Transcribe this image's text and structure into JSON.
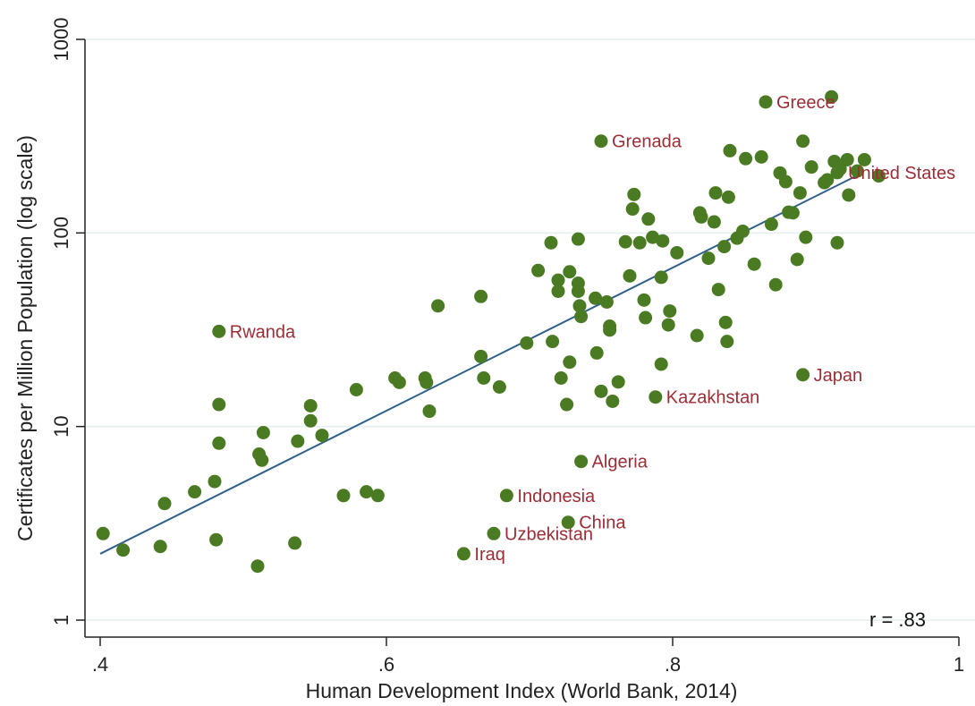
{
  "chart_data": {
    "type": "scatter",
    "title": "",
    "xlabel": "Human Development Index (World Bank, 2014)",
    "ylabel": "Certificates per Million Population (log scale)",
    "xlim": [
      0.4,
      1.0
    ],
    "ylim": [
      1,
      1000
    ],
    "yscale": "log",
    "grid": true,
    "x_ticks": [
      0.4,
      0.6,
      0.8,
      1.0
    ],
    "x_tick_labels": [
      ".4",
      ".6",
      ".8",
      "1"
    ],
    "y_ticks": [
      1,
      10,
      100,
      1000
    ],
    "y_tick_labels": [
      "1",
      "10",
      "100",
      "1000"
    ],
    "annotation": "r = .83",
    "fit_line": {
      "x": [
        0.4,
        0.93
      ],
      "y": [
        2.2,
        200
      ]
    },
    "colors": {
      "points": "#4a7a22",
      "point_labels": "#9b2d35",
      "fit_line": "#2f5f8a",
      "grid": "#e3eeee"
    },
    "labeled_points": [
      {
        "label": "Greece",
        "x": 0.865,
        "y": 475
      },
      {
        "label": "Grenada",
        "x": 0.75,
        "y": 298
      },
      {
        "label": "United States",
        "x": 0.915,
        "y": 205
      },
      {
        "label": "Rwanda",
        "x": 0.483,
        "y": 31
      },
      {
        "label": "Japan",
        "x": 0.891,
        "y": 18.5
      },
      {
        "label": "Kazakhstan",
        "x": 0.788,
        "y": 14.2
      },
      {
        "label": "Algeria",
        "x": 0.736,
        "y": 6.6
      },
      {
        "label": "Indonesia",
        "x": 0.684,
        "y": 4.4
      },
      {
        "label": "China",
        "x": 0.727,
        "y": 3.2
      },
      {
        "label": "Uzbekistan",
        "x": 0.675,
        "y": 2.8
      },
      {
        "label": "Iraq",
        "x": 0.654,
        "y": 2.2
      }
    ],
    "points": [
      {
        "x": 0.402,
        "y": 2.8
      },
      {
        "x": 0.416,
        "y": 2.3
      },
      {
        "x": 0.442,
        "y": 2.4
      },
      {
        "x": 0.445,
        "y": 4.0
      },
      {
        "x": 0.466,
        "y": 4.6
      },
      {
        "x": 0.48,
        "y": 5.2
      },
      {
        "x": 0.481,
        "y": 2.6
      },
      {
        "x": 0.483,
        "y": 8.2
      },
      {
        "x": 0.483,
        "y": 13.0
      },
      {
        "x": 0.51,
        "y": 1.9
      },
      {
        "x": 0.511,
        "y": 7.2
      },
      {
        "x": 0.513,
        "y": 6.7
      },
      {
        "x": 0.514,
        "y": 9.3
      },
      {
        "x": 0.536,
        "y": 2.5
      },
      {
        "x": 0.538,
        "y": 8.4
      },
      {
        "x": 0.547,
        "y": 10.7
      },
      {
        "x": 0.547,
        "y": 12.8
      },
      {
        "x": 0.555,
        "y": 9.0
      },
      {
        "x": 0.57,
        "y": 4.4
      },
      {
        "x": 0.579,
        "y": 15.5
      },
      {
        "x": 0.586,
        "y": 4.6
      },
      {
        "x": 0.594,
        "y": 4.4
      },
      {
        "x": 0.606,
        "y": 17.8
      },
      {
        "x": 0.609,
        "y": 16.9
      },
      {
        "x": 0.627,
        "y": 17.8
      },
      {
        "x": 0.628,
        "y": 16.9
      },
      {
        "x": 0.63,
        "y": 12.0
      },
      {
        "x": 0.636,
        "y": 42.0
      },
      {
        "x": 0.666,
        "y": 47.0
      },
      {
        "x": 0.666,
        "y": 23.0
      },
      {
        "x": 0.668,
        "y": 17.8
      },
      {
        "x": 0.679,
        "y": 16.0
      },
      {
        "x": 0.698,
        "y": 27.0
      },
      {
        "x": 0.706,
        "y": 64.0
      },
      {
        "x": 0.715,
        "y": 89.0
      },
      {
        "x": 0.716,
        "y": 27.5
      },
      {
        "x": 0.72,
        "y": 57.0
      },
      {
        "x": 0.72,
        "y": 50.0
      },
      {
        "x": 0.722,
        "y": 17.8
      },
      {
        "x": 0.726,
        "y": 13.0
      },
      {
        "x": 0.728,
        "y": 21.5
      },
      {
        "x": 0.728,
        "y": 63.0
      },
      {
        "x": 0.734,
        "y": 93.0
      },
      {
        "x": 0.734,
        "y": 55.0
      },
      {
        "x": 0.734,
        "y": 50.0
      },
      {
        "x": 0.735,
        "y": 42.0
      },
      {
        "x": 0.736,
        "y": 37.0
      },
      {
        "x": 0.746,
        "y": 46.0
      },
      {
        "x": 0.747,
        "y": 24.0
      },
      {
        "x": 0.75,
        "y": 15.2
      },
      {
        "x": 0.754,
        "y": 44.0
      },
      {
        "x": 0.756,
        "y": 33.0
      },
      {
        "x": 0.756,
        "y": 31.5
      },
      {
        "x": 0.758,
        "y": 13.5
      },
      {
        "x": 0.762,
        "y": 17.0
      },
      {
        "x": 0.767,
        "y": 90.0
      },
      {
        "x": 0.77,
        "y": 60.0
      },
      {
        "x": 0.772,
        "y": 133.0
      },
      {
        "x": 0.773,
        "y": 158.0
      },
      {
        "x": 0.777,
        "y": 89.0
      },
      {
        "x": 0.78,
        "y": 45.0
      },
      {
        "x": 0.781,
        "y": 36.5
      },
      {
        "x": 0.783,
        "y": 118.0
      },
      {
        "x": 0.786,
        "y": 95.0
      },
      {
        "x": 0.792,
        "y": 59.0
      },
      {
        "x": 0.792,
        "y": 21.0
      },
      {
        "x": 0.793,
        "y": 91.0
      },
      {
        "x": 0.797,
        "y": 33.5
      },
      {
        "x": 0.798,
        "y": 39.5
      },
      {
        "x": 0.803,
        "y": 79.0
      },
      {
        "x": 0.817,
        "y": 29.5
      },
      {
        "x": 0.819,
        "y": 127.0
      },
      {
        "x": 0.82,
        "y": 121.0
      },
      {
        "x": 0.825,
        "y": 74.0
      },
      {
        "x": 0.829,
        "y": 114.0
      },
      {
        "x": 0.83,
        "y": 161.0
      },
      {
        "x": 0.832,
        "y": 51.0
      },
      {
        "x": 0.836,
        "y": 85.0
      },
      {
        "x": 0.837,
        "y": 34.5
      },
      {
        "x": 0.838,
        "y": 27.5
      },
      {
        "x": 0.839,
        "y": 153.0
      },
      {
        "x": 0.84,
        "y": 266.0
      },
      {
        "x": 0.845,
        "y": 94.0
      },
      {
        "x": 0.849,
        "y": 102.0
      },
      {
        "x": 0.851,
        "y": 242.0
      },
      {
        "x": 0.857,
        "y": 69.0
      },
      {
        "x": 0.862,
        "y": 247.0
      },
      {
        "x": 0.869,
        "y": 111.0
      },
      {
        "x": 0.872,
        "y": 54.0
      },
      {
        "x": 0.875,
        "y": 204.0
      },
      {
        "x": 0.879,
        "y": 184.0
      },
      {
        "x": 0.881,
        "y": 128.0
      },
      {
        "x": 0.884,
        "y": 127.0
      },
      {
        "x": 0.887,
        "y": 73.0
      },
      {
        "x": 0.889,
        "y": 161.0
      },
      {
        "x": 0.891,
        "y": 298.0
      },
      {
        "x": 0.893,
        "y": 95.0
      },
      {
        "x": 0.897,
        "y": 219.0
      },
      {
        "x": 0.906,
        "y": 182.0
      },
      {
        "x": 0.908,
        "y": 188.0
      },
      {
        "x": 0.911,
        "y": 505.0
      },
      {
        "x": 0.913,
        "y": 234.0
      },
      {
        "x": 0.915,
        "y": 89.0
      },
      {
        "x": 0.917,
        "y": 214.0
      },
      {
        "x": 0.922,
        "y": 239.0
      },
      {
        "x": 0.923,
        "y": 157.0
      },
      {
        "x": 0.929,
        "y": 209.0
      },
      {
        "x": 0.934,
        "y": 239.0
      },
      {
        "x": 0.944,
        "y": 197.0
      }
    ]
  }
}
